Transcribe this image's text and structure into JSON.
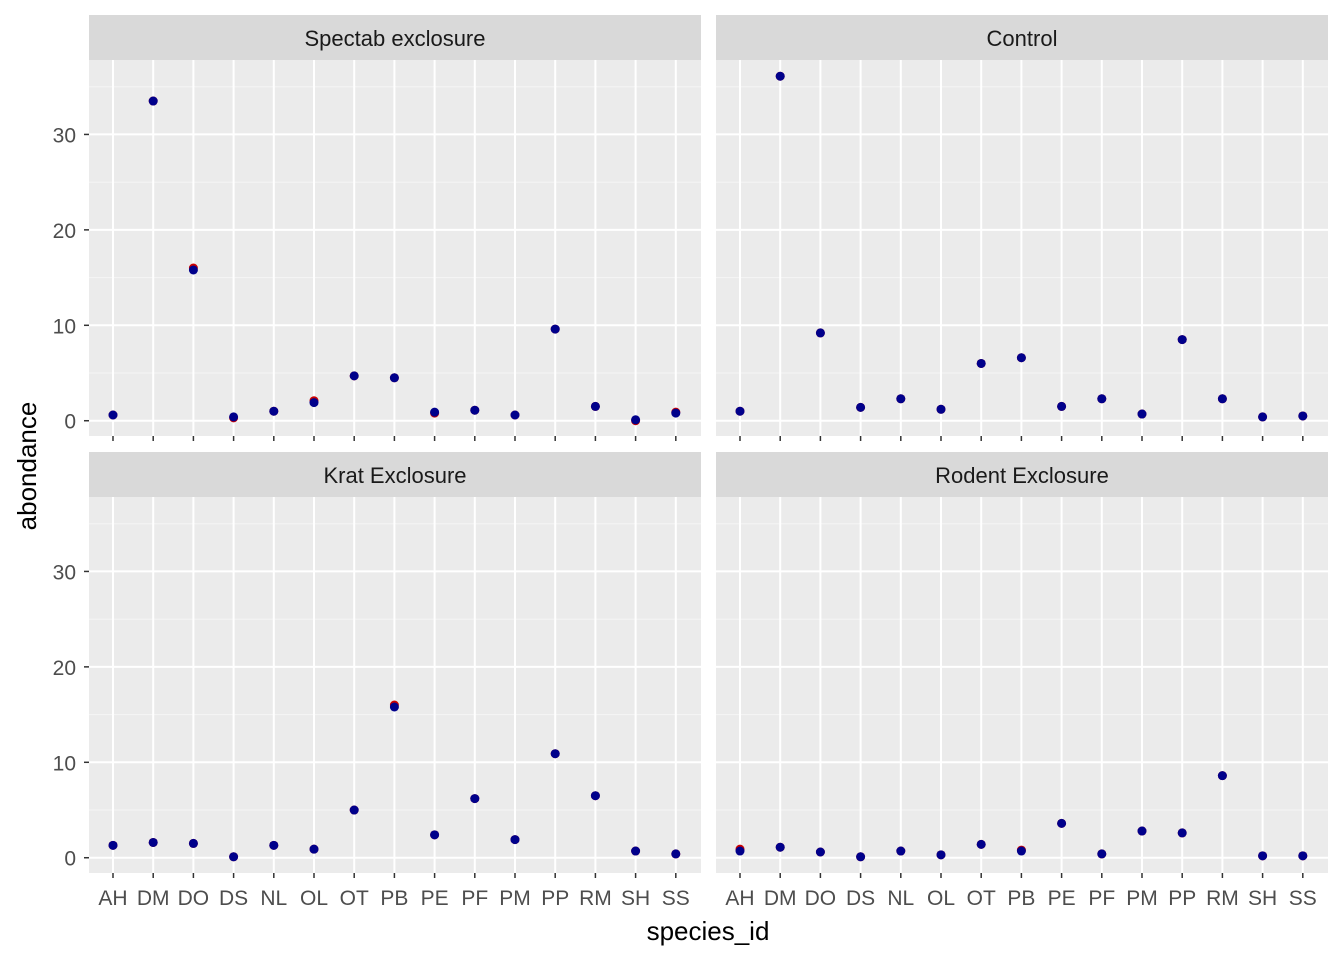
{
  "chart_data": {
    "type": "scatter",
    "xlabel": "species_id",
    "ylabel": "abondance",
    "categories": [
      "AH",
      "DM",
      "DO",
      "DS",
      "NL",
      "OL",
      "OT",
      "PB",
      "PE",
      "PF",
      "PM",
      "PP",
      "RM",
      "SH",
      "SS"
    ],
    "ylim": [
      -1.6,
      37.8
    ],
    "yticks": [
      0,
      10,
      20,
      30
    ],
    "grid": true,
    "point_colors": {
      "primary": "#00008B",
      "secondary": "#CC0000"
    },
    "panels": [
      {
        "title": "Spectab exclosure",
        "values": [
          0.6,
          33.5,
          15.8,
          0.4,
          1.0,
          1.9,
          4.7,
          4.5,
          0.9,
          1.1,
          0.6,
          9.6,
          1.5,
          0.1,
          0.8
        ],
        "values2": [
          0.6,
          33.5,
          16.0,
          0.3,
          1.0,
          2.1,
          4.7,
          4.5,
          0.8,
          1.1,
          0.6,
          9.6,
          1.5,
          0.0,
          0.9
        ]
      },
      {
        "title": "Control",
        "values": [
          1.0,
          36.1,
          9.2,
          1.4,
          2.3,
          1.2,
          6.0,
          6.6,
          1.5,
          2.3,
          0.7,
          8.5,
          2.3,
          0.4,
          0.5
        ],
        "values2": [
          1.0,
          36.1,
          9.2,
          1.4,
          2.3,
          1.2,
          6.0,
          6.6,
          1.5,
          2.3,
          0.7,
          8.5,
          2.3,
          0.4,
          0.5
        ]
      },
      {
        "title": "Krat Exclosure",
        "values": [
          1.3,
          1.6,
          1.5,
          0.1,
          1.3,
          0.9,
          5.0,
          15.8,
          2.4,
          6.2,
          1.9,
          10.9,
          6.5,
          0.7,
          0.4
        ],
        "values2": [
          1.3,
          1.6,
          1.5,
          0.1,
          1.3,
          0.9,
          5.0,
          16.0,
          2.4,
          6.2,
          1.9,
          10.9,
          6.5,
          0.7,
          0.4
        ]
      },
      {
        "title": "Rodent Exclosure",
        "values": [
          0.7,
          1.1,
          0.6,
          0.1,
          0.7,
          0.3,
          1.4,
          0.7,
          3.6,
          0.4,
          2.8,
          2.6,
          8.6,
          0.2,
          0.2
        ],
        "values2": [
          0.9,
          1.1,
          0.6,
          0.1,
          0.7,
          0.3,
          1.4,
          0.8,
          3.6,
          0.4,
          2.8,
          2.6,
          8.6,
          0.2,
          0.2
        ]
      }
    ]
  }
}
